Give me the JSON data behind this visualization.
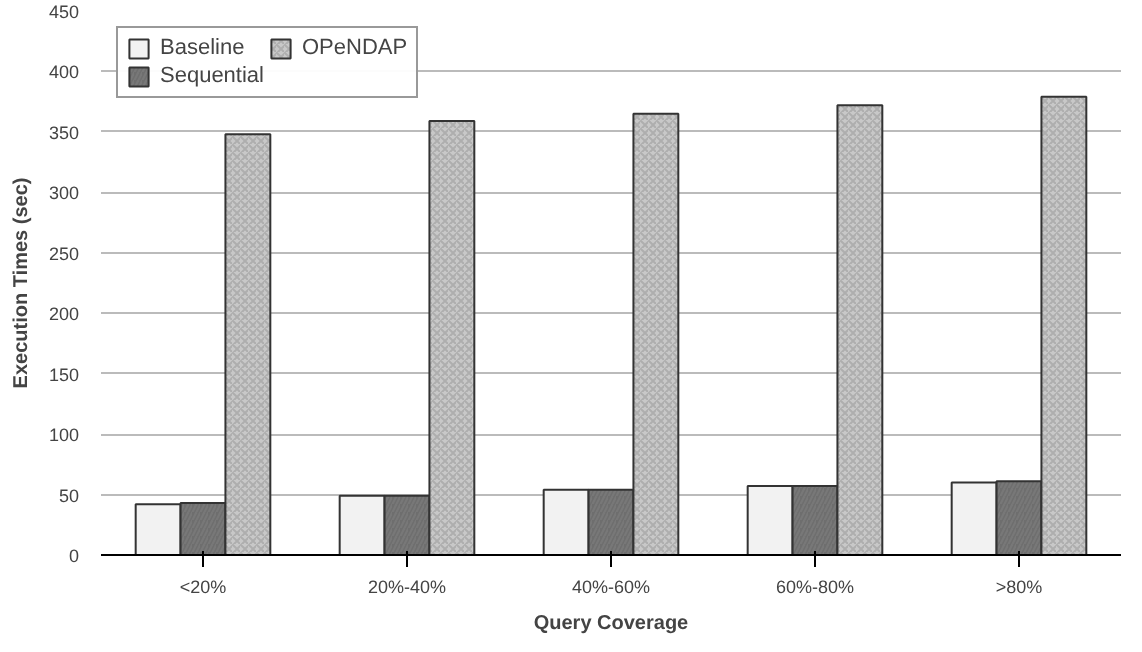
{
  "chart_data": {
    "type": "bar",
    "xlabel": "Query Coverage",
    "ylabel": "Execution Times (sec)",
    "categories": [
      "<20%",
      "20%-40%",
      "40%-60%",
      "60%-80%",
      ">80%"
    ],
    "series": [
      {
        "name": "Baseline",
        "color": "#f2f2f2",
        "values": [
          42,
          49,
          54,
          57,
          60
        ]
      },
      {
        "name": "Sequential",
        "color": "#6e6e6e",
        "values": [
          43,
          49,
          54,
          57,
          61
        ]
      },
      {
        "name": "OPeNDAP",
        "color": "#c8c8c8",
        "values": [
          348,
          359,
          365,
          372,
          379
        ]
      }
    ],
    "ylim": [
      0,
      450
    ],
    "yticks": [
      0,
      50,
      100,
      150,
      200,
      250,
      300,
      350,
      400,
      450
    ],
    "grid": "y",
    "legend": "top left"
  }
}
